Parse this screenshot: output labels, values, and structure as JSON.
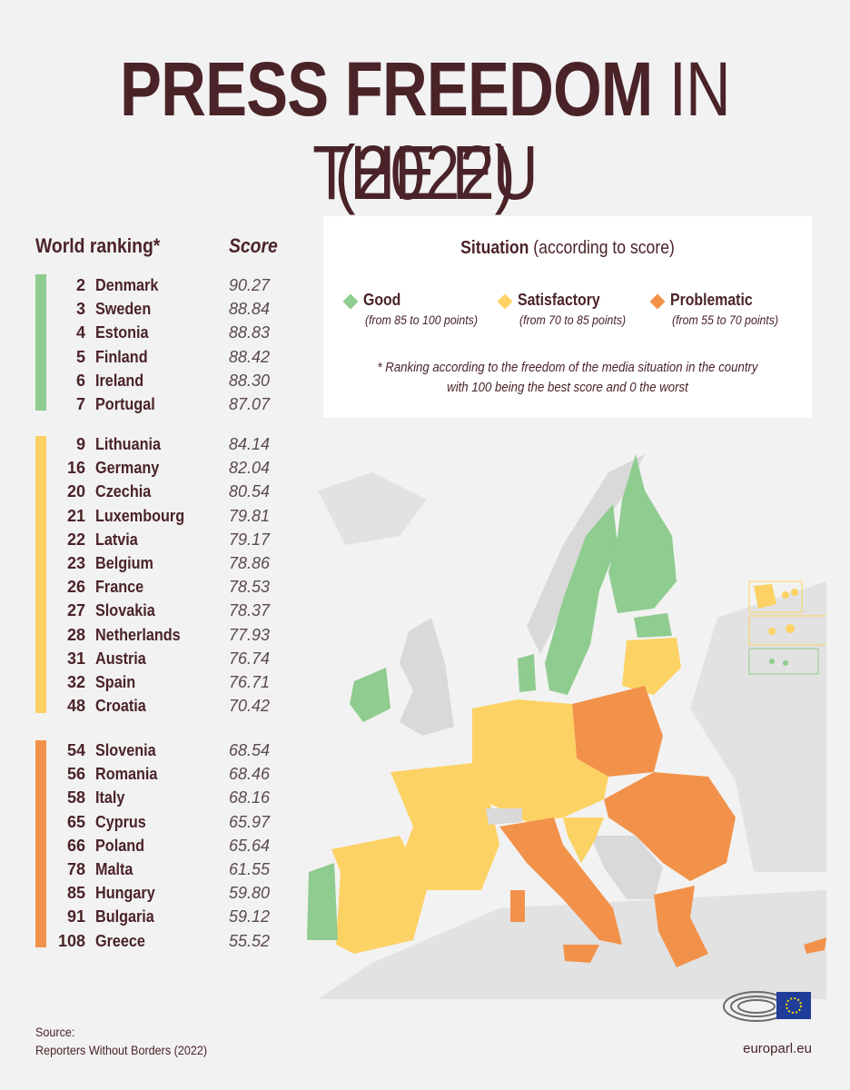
{
  "title": {
    "bold": "PRESS FREEDOM",
    "light": "IN THE EU",
    "year": "(2022)"
  },
  "table": {
    "rank_header": "World ranking*",
    "score_header": "Score",
    "good": [
      {
        "rank": "2",
        "country": "Denmark",
        "score": "90.27"
      },
      {
        "rank": "3",
        "country": "Sweden",
        "score": "88.84"
      },
      {
        "rank": "4",
        "country": "Estonia",
        "score": "88.83"
      },
      {
        "rank": "5",
        "country": "Finland",
        "score": "88.42"
      },
      {
        "rank": "6",
        "country": "Ireland",
        "score": "88.30"
      },
      {
        "rank": "7",
        "country": "Portugal",
        "score": "87.07"
      }
    ],
    "satisfactory": [
      {
        "rank": "9",
        "country": "Lithuania",
        "score": "84.14"
      },
      {
        "rank": "16",
        "country": "Germany",
        "score": "82.04"
      },
      {
        "rank": "20",
        "country": "Czechia",
        "score": "80.54"
      },
      {
        "rank": "21",
        "country": "Luxembourg",
        "score": "79.81"
      },
      {
        "rank": "22",
        "country": "Latvia",
        "score": "79.17"
      },
      {
        "rank": "23",
        "country": "Belgium",
        "score": "78.86"
      },
      {
        "rank": "26",
        "country": "France",
        "score": "78.53"
      },
      {
        "rank": "27",
        "country": "Slovakia",
        "score": "78.37"
      },
      {
        "rank": "28",
        "country": "Netherlands",
        "score": "77.93"
      },
      {
        "rank": "31",
        "country": "Austria",
        "score": "76.74"
      },
      {
        "rank": "32",
        "country": "Spain",
        "score": "76.71"
      },
      {
        "rank": "48",
        "country": "Croatia",
        "score": "70.42"
      }
    ],
    "problematic": [
      {
        "rank": "54",
        "country": "Slovenia",
        "score": "68.54"
      },
      {
        "rank": "56",
        "country": "Romania",
        "score": "68.46"
      },
      {
        "rank": "58",
        "country": "Italy",
        "score": "68.16"
      },
      {
        "rank": "65",
        "country": "Cyprus",
        "score": "65.97"
      },
      {
        "rank": "66",
        "country": "Poland",
        "score": "65.64"
      },
      {
        "rank": "78",
        "country": "Malta",
        "score": "61.55"
      },
      {
        "rank": "85",
        "country": "Hungary",
        "score": "59.80"
      },
      {
        "rank": "91",
        "country": "Bulgaria",
        "score": "59.12"
      },
      {
        "rank": "108",
        "country": "Greece",
        "score": "55.52"
      }
    ]
  },
  "legend": {
    "title_bold": "Situation",
    "title_rest": "(according to score)",
    "items": [
      {
        "label": "Good",
        "range": "(from 85 to 100 points)",
        "color": "#8fcc8f"
      },
      {
        "label": "Satisfactory",
        "range": "(from 70 to 85 points)",
        "color": "#fdd264"
      },
      {
        "label": "Problematic",
        "range": "(from 55 to 70 points)",
        "color": "#f2924a"
      }
    ],
    "note_line1": "* Ranking according to the freedom of the media situation in the country",
    "note_line2": "with 100 being the best score and 0 the worst"
  },
  "colors": {
    "good": "#8fcc8f",
    "satisfactory": "#fdd264",
    "problematic": "#f2924a",
    "nonmember": "#d9d9d9",
    "text": "#4a2328"
  },
  "source": {
    "label": "Source:",
    "text": "Reporters Without Borders (2022)"
  },
  "footer": {
    "site": "europarl.eu"
  }
}
